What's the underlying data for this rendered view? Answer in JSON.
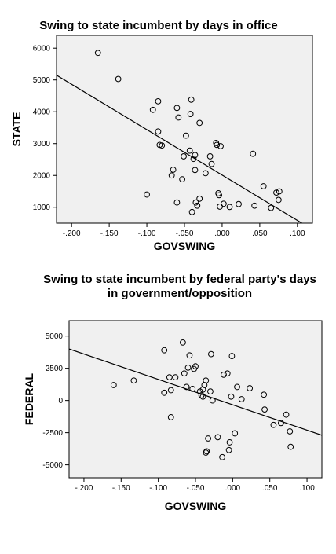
{
  "chart_data": [
    {
      "type": "scatter",
      "title": "Swing to state incumbent by days in office",
      "xlabel": "GOVSWING",
      "ylabel": "STATE",
      "xlim": [
        -0.22,
        0.12
      ],
      "ylim": [
        500,
        6400
      ],
      "xticks": [
        -0.2,
        -0.15,
        -0.1,
        -0.05,
        0.0,
        0.05,
        0.1
      ],
      "xtick_labels": [
        "-.200",
        "-.150",
        "-.100",
        "-.050",
        ".000",
        ".050",
        ".100"
      ],
      "yticks": [
        1000,
        2000,
        3000,
        4000,
        5000,
        6000
      ],
      "ytick_labels": [
        "1000",
        "2000",
        "3000",
        "4000",
        "5000",
        "6000"
      ],
      "grid": false,
      "fit_line": {
        "x": [
          -0.22,
          0.12
        ],
        "y": [
          5150,
          300
        ]
      },
      "points": [
        [
          -0.165,
          5850
        ],
        [
          -0.138,
          5030
        ],
        [
          -0.092,
          4060
        ],
        [
          -0.085,
          4330
        ],
        [
          -0.085,
          3380
        ],
        [
          -0.083,
          2960
        ],
        [
          -0.08,
          2940
        ],
        [
          -0.067,
          2000
        ],
        [
          -0.065,
          2180
        ],
        [
          -0.06,
          4120
        ],
        [
          -0.058,
          3820
        ],
        [
          -0.06,
          1150
        ],
        [
          -0.053,
          1880
        ],
        [
          -0.051,
          2600
        ],
        [
          -0.048,
          3250
        ],
        [
          -0.043,
          2780
        ],
        [
          -0.042,
          3930
        ],
        [
          -0.041,
          4380
        ],
        [
          -0.04,
          850
        ],
        [
          -0.038,
          2520
        ],
        [
          -0.036,
          2640
        ],
        [
          -0.036,
          2170
        ],
        [
          -0.035,
          1150
        ],
        [
          -0.033,
          1050
        ],
        [
          -0.03,
          3650
        ],
        [
          -0.03,
          1270
        ],
        [
          -0.022,
          2070
        ],
        [
          -0.016,
          2600
        ],
        [
          -0.014,
          2360
        ],
        [
          -0.008,
          3020
        ],
        [
          -0.007,
          2960
        ],
        [
          -0.005,
          1440
        ],
        [
          -0.004,
          1380
        ],
        [
          -0.003,
          1020
        ],
        [
          -0.002,
          2920
        ],
        [
          0.002,
          1110
        ],
        [
          0.01,
          1010
        ],
        [
          0.022,
          1100
        ],
        [
          0.041,
          2680
        ],
        [
          0.043,
          1050
        ],
        [
          0.055,
          1660
        ],
        [
          0.065,
          980
        ],
        [
          0.072,
          1460
        ],
        [
          0.075,
          1230
        ],
        [
          0.076,
          1500
        ],
        [
          -0.1,
          1400
        ]
      ]
    },
    {
      "type": "scatter",
      "title": "Swing to state incumbent by federal party's days in government/opposition",
      "title_lines": [
        "Swing to state incumbent by federal party's days",
        "in government/opposition"
      ],
      "xlabel": "GOVSWING",
      "ylabel": "FEDERAL",
      "xlim": [
        -0.22,
        0.12
      ],
      "ylim": [
        -6000,
        6200
      ],
      "xticks": [
        -0.2,
        -0.15,
        -0.1,
        -0.05,
        0.0,
        0.05,
        0.1
      ],
      "xtick_labels": [
        "-.200",
        "-.150",
        "-.100",
        "-.050",
        ".000",
        ".050",
        ".100"
      ],
      "yticks": [
        -5000,
        -2500,
        0,
        2500,
        5000
      ],
      "ytick_labels": [
        "-5000",
        "-2500",
        "0",
        "2500",
        "5000"
      ],
      "grid": false,
      "fit_line": {
        "x": [
          -0.22,
          0.12
        ],
        "y": [
          4000,
          -2700
        ]
      },
      "points": [
        [
          -0.16,
          1200
        ],
        [
          -0.133,
          1550
        ],
        [
          -0.092,
          3900
        ],
        [
          -0.092,
          600
        ],
        [
          -0.085,
          1800
        ],
        [
          -0.083,
          800
        ],
        [
          -0.083,
          -1300
        ],
        [
          -0.077,
          1800
        ],
        [
          -0.067,
          4500
        ],
        [
          -0.065,
          2100
        ],
        [
          -0.062,
          1050
        ],
        [
          -0.06,
          2550
        ],
        [
          -0.058,
          3500
        ],
        [
          -0.054,
          900
        ],
        [
          -0.052,
          2450
        ],
        [
          -0.05,
          2650
        ],
        [
          -0.044,
          700
        ],
        [
          -0.042,
          400
        ],
        [
          -0.04,
          300
        ],
        [
          -0.04,
          850
        ],
        [
          -0.038,
          1200
        ],
        [
          -0.036,
          1550
        ],
        [
          -0.036,
          -4050
        ],
        [
          -0.035,
          -3950
        ],
        [
          -0.033,
          -2950
        ],
        [
          -0.03,
          700
        ],
        [
          -0.029,
          3600
        ],
        [
          -0.027,
          0
        ],
        [
          -0.02,
          -2850
        ],
        [
          -0.014,
          -4400
        ],
        [
          -0.012,
          2000
        ],
        [
          -0.007,
          2100
        ],
        [
          -0.005,
          -3850
        ],
        [
          -0.004,
          -3250
        ],
        [
          -0.002,
          300
        ],
        [
          -0.001,
          3450
        ],
        [
          0.003,
          -2550
        ],
        [
          0.006,
          1050
        ],
        [
          0.012,
          100
        ],
        [
          0.023,
          950
        ],
        [
          0.042,
          450
        ],
        [
          0.043,
          -700
        ],
        [
          0.055,
          -1900
        ],
        [
          0.065,
          -1750
        ],
        [
          0.072,
          -1100
        ],
        [
          0.077,
          -2400
        ],
        [
          0.078,
          -3600
        ]
      ]
    }
  ]
}
